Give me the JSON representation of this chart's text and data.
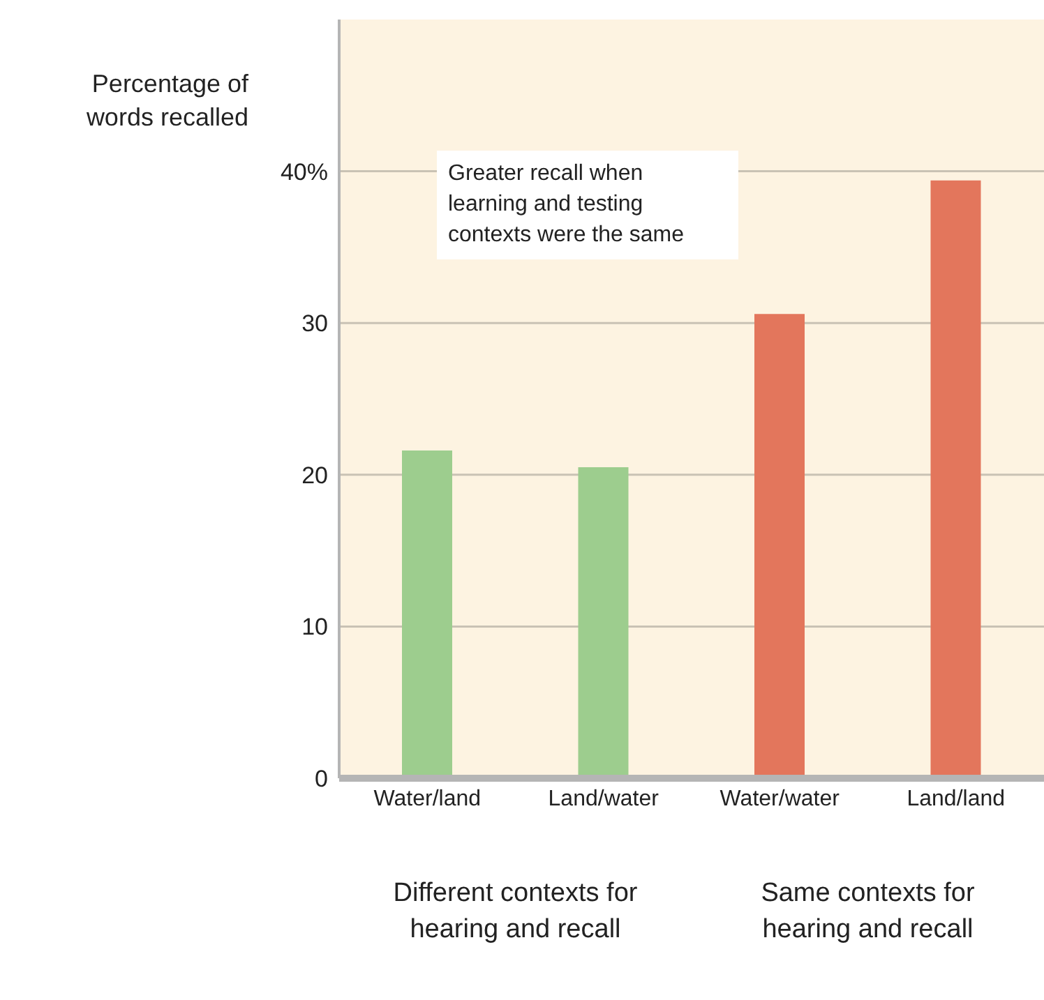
{
  "chart_data": {
    "type": "bar",
    "ylabel": "Percentage of words recalled",
    "categories": [
      "Water/land",
      "Land/water",
      "Water/water",
      "Land/land"
    ],
    "values": [
      21.6,
      20.5,
      30.6,
      39.4
    ],
    "colors": [
      "#9dcd8e",
      "#9dcd8e",
      "#e3765c",
      "#e3765c"
    ],
    "ylim": [
      0,
      50
    ],
    "yticks": [
      0,
      10,
      20,
      30,
      {
        "value": 40,
        "label": "40%"
      }
    ],
    "grid": "y",
    "annotations": [
      "Greater recall when learning and testing contexts were the same",
      "Different contexts for hearing and recall",
      "Same contexts for hearing and recall"
    ]
  }
}
